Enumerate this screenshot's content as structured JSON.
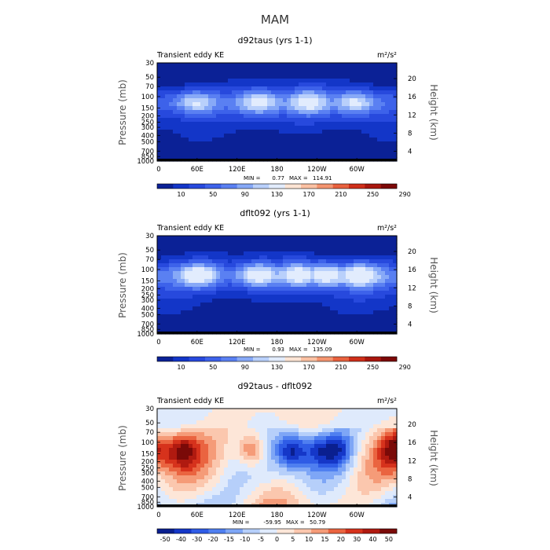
{
  "page": {
    "title": "MAM"
  },
  "colors": {
    "diverging": [
      "#0a1f8f",
      "#1537c8",
      "#2f5ce6",
      "#4f7ff0",
      "#7ea6f6",
      "#b6cffa",
      "#dfeafc",
      "#fde6d8",
      "#fbc7ae",
      "#f59b78",
      "#ea6440",
      "#d6321c",
      "#b01a10",
      "#7a0a08"
    ],
    "ke_levels": [
      "#0b2196",
      "#1336c8",
      "#2749dd",
      "#3d62ea",
      "#5a80f2",
      "#87a9f7",
      "#b9d0fb",
      "#e2ecfd",
      "#fde4d4",
      "#fbc1a3",
      "#f49570",
      "#e8613e",
      "#cf2f1a",
      "#a9170e",
      "#7c0807"
    ]
  },
  "chart_data": [
    {
      "type": "heatmap",
      "name": "panel1",
      "title": "d92taus (yrs 1-1)",
      "left_label": "Transient eddy KE",
      "units": "m²/s²",
      "ylabel": "Pressure (mb)",
      "ylabel_right": "Height (km)",
      "pressure_ticks": [
        "30",
        "50",
        "70",
        "100",
        "150",
        "200",
        "250",
        "300",
        "400",
        "500",
        "700",
        "850",
        "1000"
      ],
      "height_ticks": [
        "20",
        "16",
        "12",
        "8",
        "4"
      ],
      "lon_ticks": [
        "0",
        "60E",
        "120E",
        "180",
        "120W",
        "60W"
      ],
      "stats": {
        "min_label": "MIN =",
        "min": "0.77",
        "max_label": "MAX =",
        "max": "114.91"
      },
      "colorbar_labels": [
        "10",
        "50",
        "90",
        "130",
        "170",
        "210",
        "250",
        "290"
      ],
      "max_value": 114.91,
      "jet_strength": 0.78,
      "jet_centers_lon": [
        55,
        150,
        225,
        295
      ],
      "mode": "ke"
    },
    {
      "type": "heatmap",
      "name": "panel2",
      "title": "dflt092 (yrs 1-1)",
      "left_label": "Transient eddy KE",
      "units": "m²/s²",
      "ylabel": "Pressure (mb)",
      "ylabel_right": "Height (km)",
      "pressure_ticks": [
        "30",
        "50",
        "70",
        "100",
        "150",
        "200",
        "250",
        "300",
        "400",
        "500",
        "700",
        "850",
        "1000"
      ],
      "height_ticks": [
        "20",
        "16",
        "12",
        "8",
        "4"
      ],
      "lon_ticks": [
        "0",
        "60E",
        "120E",
        "180",
        "120W",
        "60W"
      ],
      "stats": {
        "min_label": "MIN =",
        "min": "0.93",
        "max_label": "MAX =",
        "max": "135.09"
      },
      "colorbar_labels": [
        "10",
        "50",
        "90",
        "130",
        "170",
        "210",
        "250",
        "290"
      ],
      "max_value": 135.09,
      "jet_strength": 0.9,
      "jet_centers_lon": [
        60,
        150,
        210,
        250,
        300
      ],
      "mode": "ke"
    },
    {
      "type": "heatmap",
      "name": "panel3",
      "title": "d92taus - dflt092",
      "left_label": "Transient eddy KE",
      "units": "m²/s²",
      "ylabel": "Pressure (mb)",
      "ylabel_right": "Height (km)",
      "pressure_ticks": [
        "30",
        "50",
        "70",
        "100",
        "150",
        "200",
        "250",
        "300",
        "400",
        "500",
        "700",
        "850",
        "1000"
      ],
      "height_ticks": [
        "20",
        "16",
        "12",
        "8",
        "4"
      ],
      "lon_ticks": [
        "0",
        "60E",
        "120E",
        "180",
        "120W",
        "60W"
      ],
      "stats": {
        "min_label": "MIN =",
        "min": "-59.95",
        "max_label": "MAX =",
        "max": "50.79"
      },
      "colorbar_labels": [
        "-50",
        "-40",
        "-30",
        "-20",
        "-15",
        "-10",
        "-5",
        "0",
        "5",
        "10",
        "15",
        "20",
        "30",
        "40",
        "50"
      ],
      "min_value": -59.95,
      "max_value": 50.79,
      "mode": "diff"
    }
  ]
}
